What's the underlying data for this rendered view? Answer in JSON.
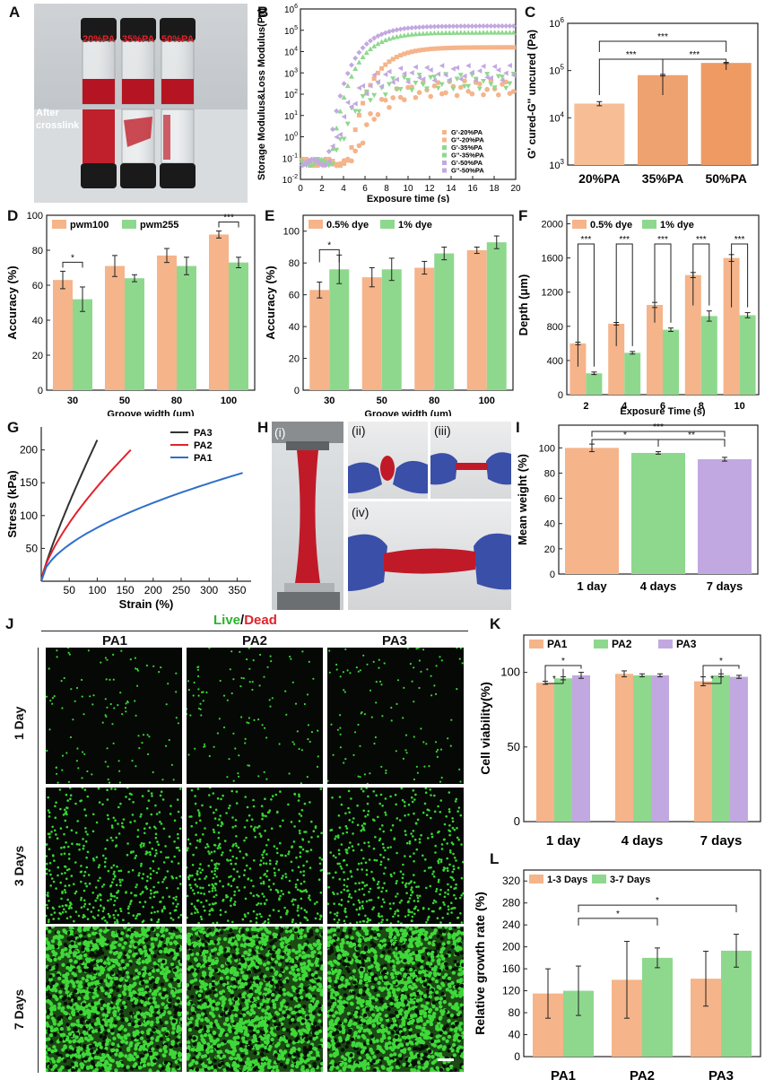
{
  "panel_letters": {
    "A": "A",
    "B": "B",
    "C": "C",
    "D": "D",
    "E": "E",
    "F": "F",
    "G": "G",
    "H": "H",
    "I": "I",
    "J": "J",
    "K": "K",
    "L": "L"
  },
  "panelA": {
    "labels": [
      "20%PA",
      "35%PA",
      "50%PA"
    ],
    "after": "After",
    "crosslink": "crosslink"
  },
  "panelH": {
    "labels": [
      "(i)",
      "(ii)",
      "(iii)",
      "(iv)"
    ]
  },
  "panelJ": {
    "title_live": "Live",
    "title_slash": "/",
    "title_dead": "Dead",
    "cols": [
      "PA1",
      "PA2",
      "PA3"
    ],
    "rows": [
      "1 Day",
      "3 Days",
      "7 Days"
    ]
  },
  "chart_data": [
    {
      "id": "B",
      "type": "scatter",
      "xlabel": "Exposure time (s)",
      "ylabel": "Storage Modulus&Loss Modulus(Pa)",
      "xlim": [
        0,
        20
      ],
      "ylim_log10": [
        -2,
        6
      ],
      "log_y": true,
      "xticks": [
        "0",
        "2",
        "4",
        "6",
        "8",
        "10",
        "12",
        "14",
        "16",
        "18",
        "20"
      ],
      "yticks": [
        "10-2",
        "10-1",
        "100",
        "101",
        "102",
        "103",
        "104",
        "105",
        "106"
      ],
      "legend": [
        "G'-20%PA",
        "G''-20%PA",
        "G'-35%PA",
        "G''-35%PA",
        "G'-50%PA",
        "G''-50%PA"
      ],
      "series": [
        {
          "name": "G'-20%PA",
          "onset": 4.5,
          "final_log": 4.2,
          "noise": 0
        },
        {
          "name": "G''-20%PA",
          "onset": 5,
          "final_log": 2.3,
          "noise": 1
        },
        {
          "name": "G'-35%PA",
          "onset": 2.8,
          "final_log": 4.9,
          "noise": 0
        },
        {
          "name": "G''-35%PA",
          "onset": 3.2,
          "final_log": 2.6,
          "noise": 1
        },
        {
          "name": "G'-50%PA",
          "onset": 2.5,
          "final_log": 5.2,
          "noise": 0
        },
        {
          "name": "G''-50%PA",
          "onset": 2.8,
          "final_log": 3.0,
          "noise": 1
        }
      ]
    },
    {
      "id": "C",
      "type": "bar",
      "ylabel": "G' cured-G'' uncured (Pa)",
      "log_y": true,
      "ylim_log10": [
        3,
        6
      ],
      "yticks": [
        "103",
        "104",
        "105",
        "106"
      ],
      "categories": [
        "20%PA",
        "35%PA",
        "50%PA"
      ],
      "values": [
        20000,
        80000,
        145000
      ],
      "errors": [
        2000,
        3000,
        4000
      ],
      "sig": [
        {
          "a": 0,
          "b": 1,
          "t": "***"
        },
        {
          "a": 1,
          "b": 2,
          "t": "***"
        },
        {
          "a": 0,
          "b": 2,
          "t": "***"
        }
      ]
    },
    {
      "id": "D",
      "type": "bar",
      "xlabel": "Groove width (μm)",
      "ylabel": "Accuracy (%)",
      "ylim": [
        0,
        100
      ],
      "yticks": [
        "0",
        "20",
        "40",
        "60",
        "80",
        "100"
      ],
      "categories": [
        "30",
        "50",
        "80",
        "100"
      ],
      "series": [
        {
          "name": "pwm100",
          "values": [
            63,
            71,
            77,
            89
          ],
          "errors": [
            5,
            6,
            4,
            2
          ]
        },
        {
          "name": "pwm255",
          "values": [
            52,
            64,
            71,
            73
          ],
          "errors": [
            7,
            2,
            5,
            3
          ]
        }
      ],
      "sig": [
        {
          "c": 0,
          "t": "*"
        },
        {
          "c": 3,
          "t": "***"
        }
      ]
    },
    {
      "id": "E",
      "type": "bar",
      "xlabel": "Groove width (μm)",
      "ylabel": "Accuracy (%)",
      "ylim": [
        0,
        110
      ],
      "yticks": [
        "0",
        "20",
        "40",
        "60",
        "80",
        "100"
      ],
      "categories": [
        "30",
        "50",
        "80",
        "100"
      ],
      "series": [
        {
          "name": "0.5% dye",
          "values": [
            63,
            71,
            77,
            88
          ],
          "errors": [
            5,
            6,
            4,
            2
          ]
        },
        {
          "name": "1% dye",
          "values": [
            76,
            76,
            86,
            93
          ],
          "errors": [
            9,
            7,
            4,
            4
          ]
        }
      ],
      "sig": [
        {
          "c": 0,
          "t": "*"
        }
      ]
    },
    {
      "id": "F",
      "type": "bar",
      "xlabel": "Exposure Time (s)",
      "ylabel": "Depth (μm)",
      "ylim": [
        0,
        2100
      ],
      "yticks": [
        "0",
        "400",
        "800",
        "1200",
        "1600",
        "2000"
      ],
      "categories": [
        "2",
        "4",
        "6",
        "8",
        "10"
      ],
      "series": [
        {
          "name": "0.5% dye",
          "values": [
            600,
            830,
            1050,
            1400,
            1600
          ],
          "errors": [
            15,
            15,
            30,
            30,
            40
          ]
        },
        {
          "name": "1% dye",
          "values": [
            250,
            490,
            760,
            920,
            930
          ],
          "errors": [
            15,
            15,
            20,
            60,
            30
          ]
        }
      ],
      "sig": [
        {
          "c": 0,
          "t": "***"
        },
        {
          "c": 1,
          "t": "***"
        },
        {
          "c": 2,
          "t": "***"
        },
        {
          "c": 3,
          "t": "***"
        },
        {
          "c": 4,
          "t": "***"
        }
      ]
    },
    {
      "id": "G",
      "type": "line",
      "xlabel": "Strain (%)",
      "ylabel": "Stress (kPa)",
      "xlim": [
        0,
        375
      ],
      "ylim": [
        0,
        235
      ],
      "xticks": [
        "50",
        "100",
        "150",
        "200",
        "250",
        "300",
        "350"
      ],
      "yticks": [
        "50",
        "100",
        "150",
        "200"
      ],
      "series": [
        {
          "name": "PA3",
          "x_end": 100,
          "y_end": 215,
          "p": 0.85
        },
        {
          "name": "PA2",
          "x_end": 160,
          "y_end": 200,
          "p": 0.7
        },
        {
          "name": "PA1",
          "x_end": 360,
          "y_end": 165,
          "p": 0.55
        }
      ]
    },
    {
      "id": "I",
      "type": "bar",
      "ylabel": "Mean weight (%)",
      "ylim": [
        0,
        118
      ],
      "yticks": [
        "0",
        "20",
        "40",
        "60",
        "80",
        "100"
      ],
      "categories": [
        "1 day",
        "4 days",
        "7 days"
      ],
      "values": [
        100,
        96,
        91
      ],
      "errors": [
        3,
        1,
        1.5
      ],
      "sig": [
        {
          "a": 0,
          "b": 1,
          "t": "*"
        },
        {
          "a": 1,
          "b": 2,
          "t": "**"
        },
        {
          "a": 0,
          "b": 2,
          "t": "***"
        }
      ]
    },
    {
      "id": "K",
      "type": "bar",
      "ylabel": "Cell viability(%)",
      "ylim": [
        0,
        125
      ],
      "yticks": [
        "0",
        "50",
        "100"
      ],
      "categories": [
        "1 day",
        "4 days",
        "7 days"
      ],
      "series": [
        {
          "name": "PA1",
          "values": [
            93,
            99,
            94
          ],
          "errors": [
            1,
            2,
            3
          ]
        },
        {
          "name": "PA2",
          "values": [
            96,
            98,
            98
          ],
          "errors": [
            1,
            1,
            1
          ]
        },
        {
          "name": "PA3",
          "values": [
            98,
            98,
            97
          ],
          "errors": [
            2,
            1,
            1
          ]
        }
      ],
      "sig": [
        {
          "c": 0,
          "a": 0,
          "b": 1,
          "t": "*"
        },
        {
          "c": 0,
          "a": 0,
          "b": 2,
          "t": "*"
        },
        {
          "c": 2,
          "a": 0,
          "b": 1,
          "t": "*"
        },
        {
          "c": 2,
          "a": 0,
          "b": 2,
          "t": "*"
        }
      ]
    },
    {
      "id": "L",
      "type": "bar",
      "ylabel": "Relative growth rate (%)",
      "ylim": [
        0,
        340
      ],
      "yticks": [
        "0",
        "40",
        "80",
        "120",
        "160",
        "200",
        "240",
        "280",
        "320"
      ],
      "categories": [
        "PA1",
        "PA2",
        "PA3"
      ],
      "series": [
        {
          "name": "1-3 Days",
          "values": [
            115,
            140,
            142
          ],
          "errors": [
            45,
            70,
            50
          ]
        },
        {
          "name": "3-7 Days",
          "values": [
            120,
            180,
            193
          ],
          "errors": [
            45,
            18,
            30
          ]
        }
      ],
      "sig": [
        {
          "a": 0,
          "b": 1,
          "t": "*"
        },
        {
          "a": 0,
          "b": 2,
          "t": "*"
        }
      ]
    }
  ],
  "colors": {
    "orange": "#F5B48A",
    "orangeDark": "#EE9E6E",
    "green": "#8ED88E",
    "purple": "#C2A8E0",
    "red": "#E2222A",
    "blue": "#2E6FCB",
    "black": "#333333"
  }
}
